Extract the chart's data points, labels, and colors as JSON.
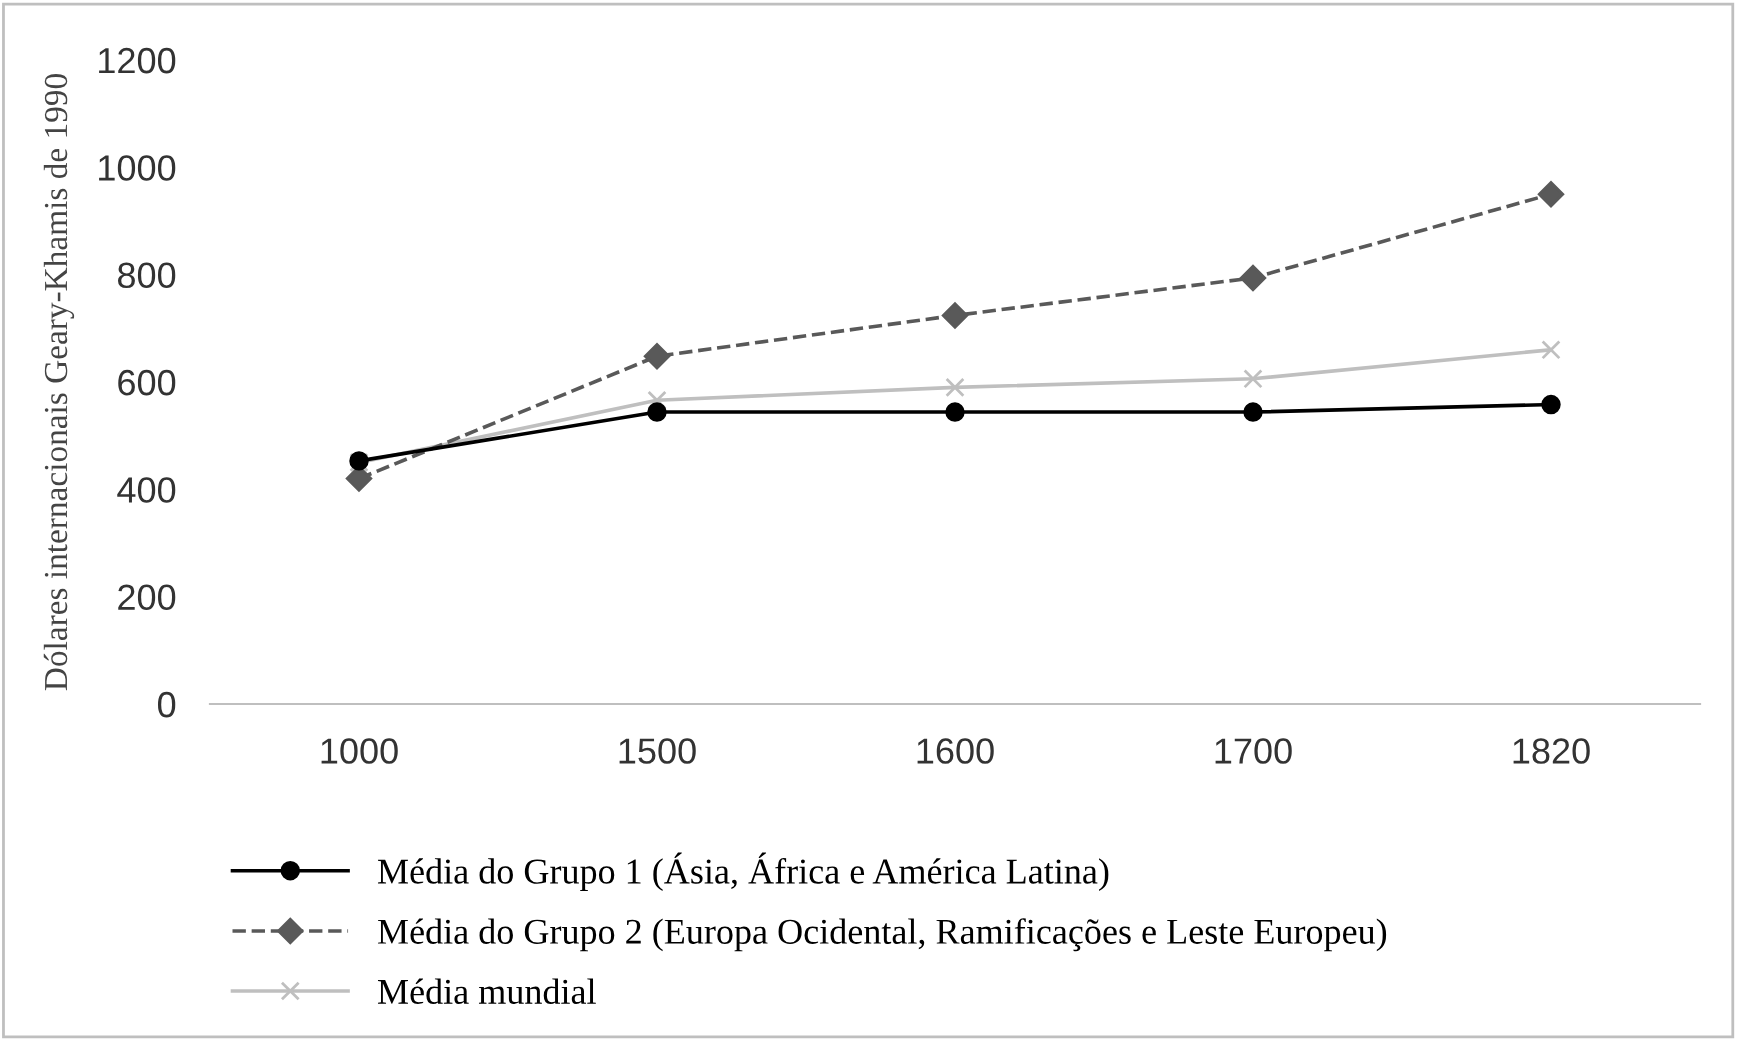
{
  "chart_data": {
    "type": "line",
    "ylabel": "Dólares internacionais Geary-Khamis de 1990",
    "categories": [
      "1000",
      "1500",
      "1600",
      "1700",
      "1820"
    ],
    "series": [
      {
        "name": "Média do Grupo 1 (Ásia, África e América Latina)",
        "color": "#000000",
        "marker": "circle",
        "line_style": "solid",
        "values": [
          453,
          544,
          544,
          544,
          558
        ]
      },
      {
        "name": "Média do Grupo 2 (Europa Ocidental, Ramificações e Leste Europeu)",
        "color": "#595959",
        "marker": "diamond",
        "line_style": "dashed",
        "values": [
          420,
          648,
          724,
          794,
          950
        ]
      },
      {
        "name": "Média mundial",
        "color": "#bfbfbf",
        "marker": "cross",
        "line_style": "solid",
        "values": [
          450,
          566,
          590,
          606,
          660
        ]
      }
    ],
    "ylim": [
      0,
      1200
    ],
    "yticks": [
      0,
      200,
      400,
      600,
      800,
      1000,
      1200
    ],
    "grid": false,
    "legend": "bottom"
  }
}
